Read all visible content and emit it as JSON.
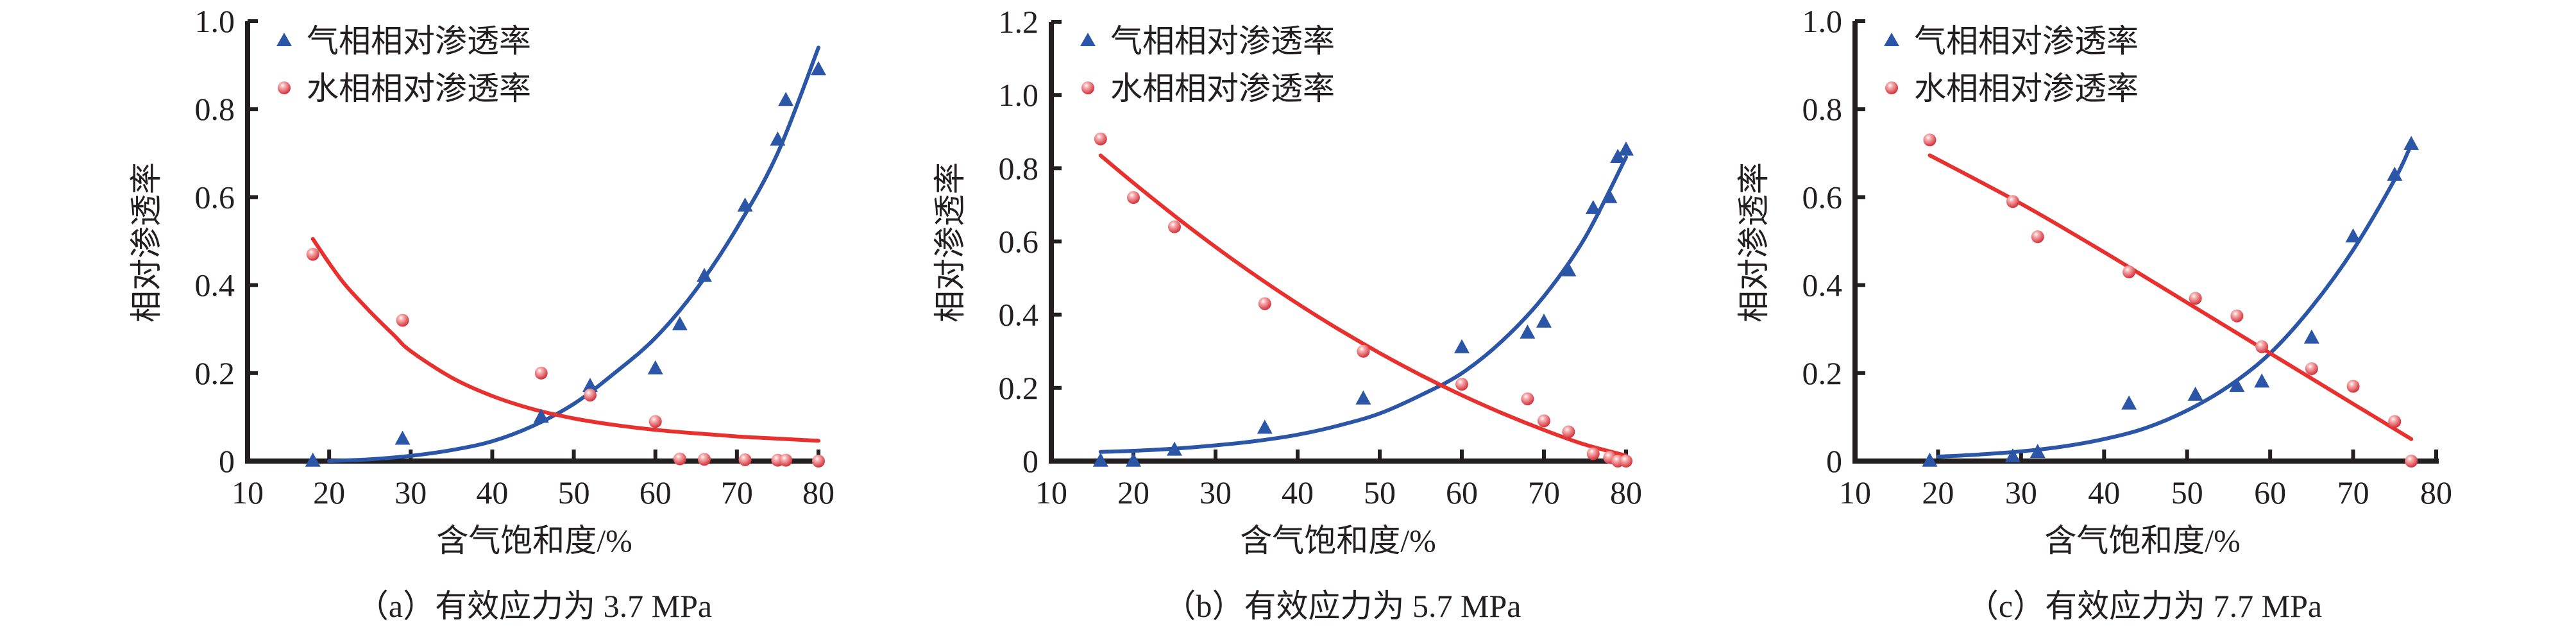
{
  "figure": {
    "colors": {
      "gas": "#2B55A6",
      "water": "#E8302F",
      "water_marker_light": "#F8B4B4",
      "water_marker_dark": "#D22B36",
      "axis": "#231F20"
    }
  },
  "chart_data": [
    {
      "type": "scatter",
      "caption": "（a）有效应力为 3.7 MPa",
      "xlabel": "含气饱和度/%",
      "ylabel": "相对渗透率",
      "xlim": [
        10,
        80
      ],
      "ylim": [
        0,
        1.0
      ],
      "xticks": [
        10,
        20,
        30,
        40,
        50,
        60,
        70,
        80
      ],
      "xtick_labels": [
        "10",
        "20",
        "30",
        "40",
        "50",
        "60",
        "70",
        "80"
      ],
      "yticks": [
        0,
        0.2,
        0.4,
        0.6,
        0.8,
        1.0
      ],
      "ytick_labels": [
        "0",
        "0.2",
        "0.4",
        "0.6",
        "0.8",
        "1.0"
      ],
      "grid": false,
      "legend": "top-left",
      "series": [
        {
          "name": "气相相对渗透率",
          "marker": "triangle",
          "x": [
            18,
            29,
            46,
            52,
            60,
            63,
            66,
            71,
            75,
            76,
            80
          ],
          "y": [
            0,
            0.05,
            0.1,
            0.17,
            0.21,
            0.31,
            0.42,
            0.58,
            0.73,
            0.82,
            0.89
          ],
          "trend": {
            "x": [
              20,
              25,
              30,
              35,
              40,
              45,
              50,
              55,
              60,
              65,
              70,
              75,
              80
            ],
            "y": [
              0.0,
              0.004,
              0.012,
              0.025,
              0.045,
              0.08,
              0.13,
              0.2,
              0.28,
              0.39,
              0.53,
              0.7,
              0.94
            ]
          }
        },
        {
          "name": "水相相对渗透率",
          "marker": "sphere",
          "x": [
            18,
            29,
            46,
            52,
            60,
            63,
            66,
            71,
            75,
            76,
            80
          ],
          "y": [
            0.47,
            0.32,
            0.2,
            0.15,
            0.09,
            0.005,
            0.004,
            0.003,
            0.002,
            0.002,
            0
          ],
          "trend": {
            "x": [
              18,
              20,
              22,
              25,
              28,
              30,
              35,
              40,
              45,
              50,
              55,
              60,
              65,
              70,
              75,
              80
            ],
            "y": [
              0.505,
              0.45,
              0.4,
              0.34,
              0.285,
              0.25,
              0.19,
              0.148,
              0.118,
              0.097,
              0.082,
              0.071,
              0.063,
              0.056,
              0.051,
              0.046
            ]
          }
        }
      ]
    },
    {
      "type": "scatter",
      "caption": "（b）有效应力为 5.7 MPa",
      "xlabel": "含气饱和度/%",
      "ylabel": "相对渗透率",
      "xlim": [
        10,
        80
      ],
      "ylim": [
        0,
        1.2
      ],
      "xticks": [
        10,
        20,
        30,
        40,
        50,
        60,
        70,
        80
      ],
      "xtick_labels": [
        "10",
        "20",
        "30",
        "40",
        "50",
        "60",
        "70",
        "80"
      ],
      "yticks": [
        0,
        0.2,
        0.4,
        0.6,
        0.8,
        1.0,
        1.2
      ],
      "ytick_labels": [
        "0",
        "0.2",
        "0.4",
        "0.6",
        "0.8",
        "1.0",
        "1.2"
      ],
      "grid": false,
      "legend": "top-left",
      "series": [
        {
          "name": "气相相对渗透率",
          "marker": "triangle",
          "x": [
            16,
            20,
            25,
            36,
            48,
            60,
            68,
            70,
            73,
            76,
            78,
            79,
            80
          ],
          "y": [
            0,
            0,
            0.03,
            0.09,
            0.17,
            0.31,
            0.35,
            0.38,
            0.52,
            0.69,
            0.72,
            0.83,
            0.85
          ],
          "trend": {
            "x": [
              16,
              20,
              25,
              30,
              35,
              40,
              45,
              50,
              55,
              60,
              65,
              70,
              75,
              80
            ],
            "y": [
              0.025,
              0.028,
              0.034,
              0.043,
              0.055,
              0.072,
              0.097,
              0.13,
              0.18,
              0.24,
              0.33,
              0.45,
              0.61,
              0.83
            ]
          }
        },
        {
          "name": "水相相对渗透率",
          "marker": "sphere",
          "x": [
            16,
            20,
            25,
            36,
            48,
            60,
            68,
            70,
            73,
            76,
            78,
            79,
            80
          ],
          "y": [
            0.88,
            0.72,
            0.64,
            0.43,
            0.3,
            0.21,
            0.17,
            0.11,
            0.08,
            0.02,
            0.01,
            0,
            0
          ],
          "trend": {
            "x": [
              16,
              20,
              25,
              30,
              35,
              40,
              45,
              50,
              55,
              60,
              65,
              70,
              75,
              80
            ],
            "y": [
              0.835,
              0.76,
              0.67,
              0.585,
              0.505,
              0.43,
              0.36,
              0.295,
              0.235,
              0.18,
              0.13,
              0.085,
              0.045,
              0.015
            ]
          }
        }
      ]
    },
    {
      "type": "scatter",
      "caption": "（c）有效应力为 7.7 MPa",
      "xlabel": "含气饱和度/%",
      "ylabel": "相对渗透率",
      "xlim": [
        10,
        80
      ],
      "ylim": [
        0,
        1.0
      ],
      "xticks": [
        10,
        20,
        30,
        40,
        50,
        60,
        70,
        80
      ],
      "xtick_labels": [
        "10",
        "20",
        "30",
        "40",
        "50",
        "60",
        "70",
        "80"
      ],
      "yticks": [
        0,
        0.2,
        0.4,
        0.6,
        0.8,
        1.0
      ],
      "ytick_labels": [
        "0",
        "0.2",
        "0.4",
        "0.6",
        "0.8",
        "1.0"
      ],
      "grid": false,
      "legend": "top-left",
      "series": [
        {
          "name": "气相相对渗透率",
          "marker": "triangle",
          "x": [
            19,
            29,
            32,
            43,
            51,
            56,
            59,
            65,
            70,
            75,
            77
          ],
          "y": [
            0,
            0.01,
            0.02,
            0.13,
            0.15,
            0.17,
            0.18,
            0.28,
            0.51,
            0.65,
            0.72
          ],
          "trend": {
            "x": [
              20,
              25,
              30,
              35,
              40,
              45,
              50,
              55,
              60,
              65,
              70,
              75,
              77
            ],
            "y": [
              0.01,
              0.015,
              0.022,
              0.033,
              0.05,
              0.075,
              0.115,
              0.17,
              0.245,
              0.35,
              0.48,
              0.64,
              0.72
            ]
          }
        },
        {
          "name": "水相相对渗透率",
          "marker": "sphere",
          "x": [
            19,
            29,
            32,
            43,
            51,
            56,
            59,
            65,
            70,
            75,
            77
          ],
          "y": [
            0.73,
            0.59,
            0.51,
            0.43,
            0.37,
            0.33,
            0.26,
            0.21,
            0.17,
            0.09,
            0
          ],
          "trend": {
            "x": [
              19,
              30,
              40,
              50,
              60,
              70,
              77
            ],
            "y": [
              0.695,
              0.585,
              0.475,
              0.36,
              0.245,
              0.13,
              0.05
            ]
          }
        }
      ]
    }
  ]
}
